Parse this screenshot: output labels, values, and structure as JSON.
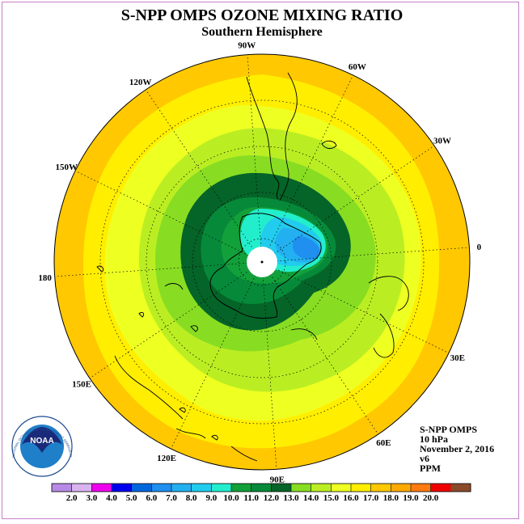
{
  "title": "S-NPP OMPS OZONE MIXING RATIO",
  "subtitle": "Southern Hemisphere",
  "longitude_labels": [
    "90W",
    "60W",
    "30W",
    "0",
    "30E",
    "60E",
    "90E",
    "120E",
    "150E",
    "180",
    "150W",
    "120W"
  ],
  "info": {
    "instrument": "S-NPP OMPS",
    "level": "10 hPa",
    "date": "November 2, 2016",
    "version": "v6",
    "units": "PPM"
  },
  "logo": {
    "text": "NOAA",
    "ring_text": "NATIONAL OCEANIC AND ATMOSPHERIC ADMINISTRATION · U.S. DEPARTMENT OF COMMERCE"
  },
  "colorbar": {
    "ticks": [
      "2.0",
      "3.0",
      "4.0",
      "5.0",
      "6.0",
      "7.0",
      "8.0",
      "9.0",
      "10.0",
      "11.0",
      "12.0",
      "13.0",
      "14.0",
      "15.0",
      "16.0",
      "17.0",
      "18.0",
      "19.0",
      "20.0"
    ],
    "colors": [
      "#b88ae6",
      "#d9b3f0",
      "#ee00ee",
      "#0000ee",
      "#0066dd",
      "#1f8ff0",
      "#22b0f0",
      "#22ccee",
      "#22eecc",
      "#12a03a",
      "#068a3a",
      "#056428",
      "#88dd22",
      "#bbee22",
      "#eeff22",
      "#ffee00",
      "#ffc800",
      "#ffaa00",
      "#ff7a10",
      "#ee0000",
      "#8a4a2a"
    ]
  },
  "map_data": {
    "projection": "south-polar-stereographic",
    "hemisphere": "south",
    "latitude_circles_deg": [
      -10,
      -30,
      -50,
      -70
    ],
    "meridian_spacing_deg": 30,
    "field": "ozone mixing ratio (ppm) at 10 hPa",
    "no_data": "south pole"
  }
}
